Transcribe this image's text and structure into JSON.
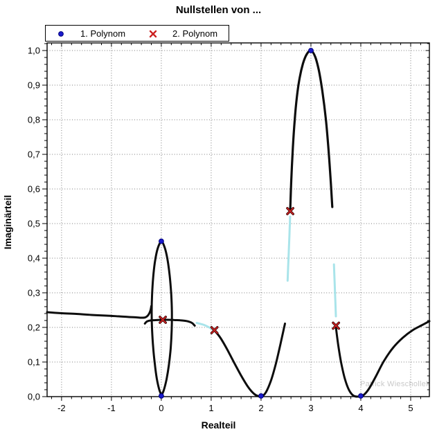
{
  "chart_data": {
    "type": "line",
    "title": "Nullstellen von ...",
    "xlabel": "Realteil",
    "ylabel": "Imaginärteil",
    "watermark": "Patrick Wieschollek",
    "xlim": [
      -2.29,
      5.375
    ],
    "ylim": [
      0,
      1.022
    ],
    "x_ticks": [
      -2,
      -1,
      0,
      1,
      2,
      3,
      4,
      5
    ],
    "x_tick_labels": [
      "-2",
      "-1",
      "0",
      "1",
      "2",
      "3",
      "4",
      "5"
    ],
    "y_ticks": [
      0,
      0.1,
      0.2,
      0.3,
      0.4,
      0.5,
      0.6,
      0.7,
      0.8,
      0.9,
      1.0
    ],
    "y_tick_labels": [
      "0,0",
      "0,1",
      "0,2",
      "0,3",
      "0,4",
      "0,5",
      "0,6",
      "0,7",
      "0,8",
      "0,9",
      "1,0"
    ],
    "x_minor_step": 0.2,
    "y_minor_step": 0.02,
    "grid": "dotted",
    "colors": {
      "curve": "#0d0d0d",
      "connector": "#a9e4ea",
      "polynom1": "#1a1acd",
      "polynom1_edge": "#00007a",
      "polynom2": "#cc2222",
      "polynom2_edge": "#330000",
      "grid": "#7a7a7a",
      "axis": "#000000"
    },
    "legend": {
      "items": [
        {
          "label": "1. Polynom",
          "marker": "circle",
          "color": "#1a1acd"
        },
        {
          "label": "2. Polynom",
          "marker": "x",
          "color": "#cc2222"
        }
      ]
    },
    "series": [
      {
        "name": "1. Polynom",
        "marker": "circle",
        "points": [
          [
            0,
            0.449
          ],
          [
            3,
            1.0
          ],
          [
            0,
            0.002
          ],
          [
            2,
            0.002
          ],
          [
            4,
            0.002
          ]
        ]
      },
      {
        "name": "2. Polynom",
        "marker": "x",
        "points": [
          [
            0.03,
            0.222
          ],
          [
            1.065,
            0.192
          ],
          [
            2.585,
            0.536
          ],
          [
            3.502,
            0.205
          ]
        ]
      }
    ],
    "curves": [
      {
        "name": "locus-left-upper",
        "color": "curve",
        "width": 3,
        "points": [
          [
            -2.29,
            0.244
          ],
          [
            -2.0,
            0.241
          ],
          [
            -1.7,
            0.239
          ],
          [
            -1.4,
            0.236
          ],
          [
            -1.1,
            0.234
          ],
          [
            -0.85,
            0.232
          ],
          [
            -0.65,
            0.23
          ],
          [
            -0.5,
            0.229
          ],
          [
            -0.4,
            0.228
          ],
          [
            -0.32,
            0.229
          ],
          [
            -0.26,
            0.236
          ],
          [
            -0.22,
            0.248
          ],
          [
            -0.2,
            0.262
          ]
        ]
      },
      {
        "name": "locus-left-lower",
        "color": "curve",
        "width": 3,
        "points": [
          [
            -0.33,
            0.211
          ],
          [
            -0.29,
            0.217
          ],
          [
            -0.22,
            0.22
          ],
          [
            -0.12,
            0.221
          ],
          [
            0.0,
            0.222
          ],
          [
            0.12,
            0.222
          ],
          [
            0.25,
            0.2215
          ],
          [
            0.38,
            0.2205
          ],
          [
            0.48,
            0.219
          ],
          [
            0.56,
            0.2165
          ],
          [
            0.62,
            0.2125
          ],
          [
            0.67,
            0.205
          ]
        ]
      },
      {
        "name": "locus-loop-at-0",
        "color": "curve",
        "width": 3,
        "points": [
          [
            0.0,
            0.004
          ],
          [
            -0.045,
            0.022
          ],
          [
            -0.09,
            0.052
          ],
          [
            -0.13,
            0.094
          ],
          [
            -0.163,
            0.142
          ],
          [
            -0.185,
            0.192
          ],
          [
            -0.193,
            0.243
          ],
          [
            -0.185,
            0.295
          ],
          [
            -0.163,
            0.345
          ],
          [
            -0.125,
            0.392
          ],
          [
            -0.072,
            0.428
          ],
          [
            0.0,
            0.448
          ],
          [
            0.065,
            0.432
          ],
          [
            0.122,
            0.398
          ],
          [
            0.168,
            0.35
          ],
          [
            0.198,
            0.298
          ],
          [
            0.212,
            0.245
          ],
          [
            0.208,
            0.192
          ],
          [
            0.188,
            0.14
          ],
          [
            0.153,
            0.092
          ],
          [
            0.105,
            0.05
          ],
          [
            0.048,
            0.018
          ],
          [
            0.005,
            0.004
          ]
        ]
      },
      {
        "name": "locus-dip-at-2",
        "color": "curve",
        "width": 3,
        "points": [
          [
            1.08,
            0.189
          ],
          [
            1.18,
            0.171
          ],
          [
            1.3,
            0.142
          ],
          [
            1.45,
            0.101
          ],
          [
            1.6,
            0.061
          ],
          [
            1.74,
            0.028
          ],
          [
            1.86,
            0.008
          ],
          [
            1.95,
            0.001
          ],
          [
            2.02,
            0.001
          ],
          [
            2.1,
            0.013
          ],
          [
            2.2,
            0.047
          ],
          [
            2.3,
            0.097
          ],
          [
            2.39,
            0.152
          ],
          [
            2.45,
            0.192
          ],
          [
            2.48,
            0.211
          ]
        ]
      },
      {
        "name": "locus-arch-at-3",
        "color": "curve",
        "width": 3.2,
        "points": [
          [
            2.586,
            0.542
          ],
          [
            2.607,
            0.63
          ],
          [
            2.638,
            0.72
          ],
          [
            2.675,
            0.8
          ],
          [
            2.72,
            0.868
          ],
          [
            2.775,
            0.922
          ],
          [
            2.84,
            0.962
          ],
          [
            2.915,
            0.989
          ],
          [
            3.0,
            1.0
          ],
          [
            3.085,
            0.982
          ],
          [
            3.16,
            0.942
          ],
          [
            3.23,
            0.882
          ],
          [
            3.3,
            0.8
          ],
          [
            3.355,
            0.71
          ],
          [
            3.4,
            0.615
          ],
          [
            3.428,
            0.548
          ]
        ]
      },
      {
        "name": "locus-dip-at-4",
        "color": "curve",
        "width": 3,
        "points": [
          [
            3.502,
            0.199
          ],
          [
            3.55,
            0.146
          ],
          [
            3.61,
            0.095
          ],
          [
            3.68,
            0.052
          ],
          [
            3.76,
            0.02
          ],
          [
            3.85,
            0.003
          ],
          [
            3.95,
            0.0
          ],
          [
            4.05,
            0.004
          ],
          [
            4.16,
            0.022
          ],
          [
            4.3,
            0.058
          ],
          [
            4.46,
            0.102
          ],
          [
            4.64,
            0.14
          ],
          [
            4.84,
            0.17
          ],
          [
            5.04,
            0.192
          ],
          [
            5.22,
            0.206
          ],
          [
            5.375,
            0.218
          ]
        ]
      },
      {
        "name": "connector-a",
        "color": "connector",
        "width": 3,
        "points": [
          [
            0.71,
            0.213
          ],
          [
            0.86,
            0.207
          ],
          [
            1.0,
            0.197
          ],
          [
            1.05,
            0.1935
          ]
        ]
      },
      {
        "name": "connector-b",
        "color": "connector",
        "width": 3,
        "points": [
          [
            2.532,
            0.335
          ],
          [
            2.55,
            0.4
          ],
          [
            2.568,
            0.465
          ],
          [
            2.583,
            0.52
          ]
        ]
      },
      {
        "name": "connector-c",
        "color": "connector",
        "width": 3,
        "points": [
          [
            3.462,
            0.382
          ],
          [
            3.475,
            0.33
          ],
          [
            3.49,
            0.272
          ],
          [
            3.5,
            0.232
          ]
        ]
      }
    ]
  }
}
